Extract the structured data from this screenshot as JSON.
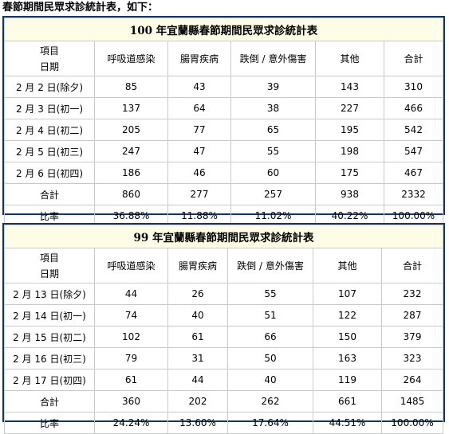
{
  "intro": "春節期間民眾求診統計表，如下：",
  "tables": [
    {
      "caption": "100 年宜蘭縣春節期間民眾求診統計表",
      "headers": {
        "item": "項目",
        "date": "日期",
        "c1": "呼吸道感染",
        "c2": "腸胃疾病",
        "c3": "跌倒 / 意外傷害",
        "c4": "其他",
        "c5": "合計"
      },
      "rows": [
        [
          "2 月 2 日(除夕)",
          "85",
          "43",
          "39",
          "143",
          "310"
        ],
        [
          "2 月 3 日(初一)",
          "137",
          "64",
          "38",
          "227",
          "466"
        ],
        [
          "2 月 4 日(初二)",
          "205",
          "77",
          "65",
          "195",
          "542"
        ],
        [
          "2 月 5 日(初三)",
          "247",
          "47",
          "55",
          "198",
          "547"
        ],
        [
          "2 月 6 日(初四)",
          "186",
          "46",
          "60",
          "175",
          "467"
        ],
        [
          "合計",
          "860",
          "277",
          "257",
          "938",
          "2332"
        ],
        [
          "比率",
          "36.88%",
          "11.88%",
          "11.02%",
          "40.22%",
          "100.00%"
        ]
      ]
    },
    {
      "caption": "99 年宜蘭縣春節期間民眾求診統計表",
      "headers": {
        "item": "項目",
        "date": "日期",
        "c1": "呼吸道感染",
        "c2": "腸胃疾病",
        "c3": "跌倒 / 意外傷害",
        "c4": "其他",
        "c5": "合計"
      },
      "rows": [
        [
          "2 月 13 日(除夕)",
          "44",
          "26",
          "55",
          "107",
          "232"
        ],
        [
          "2 月 14 日(初一)",
          "74",
          "40",
          "51",
          "122",
          "287"
        ],
        [
          "2 月 15 日(初二)",
          "102",
          "61",
          "66",
          "150",
          "379"
        ],
        [
          "2 月 16 日(初三)",
          "79",
          "31",
          "50",
          "163",
          "323"
        ],
        [
          "2 月 17 日(初四)",
          "61",
          "44",
          "40",
          "119",
          "264"
        ],
        [
          "合計",
          "360",
          "202",
          "262",
          "661",
          "1485"
        ],
        [
          "比率",
          "24.24%",
          "13.60%",
          "17.64%",
          "44.51%",
          "100.00%"
        ]
      ]
    }
  ]
}
